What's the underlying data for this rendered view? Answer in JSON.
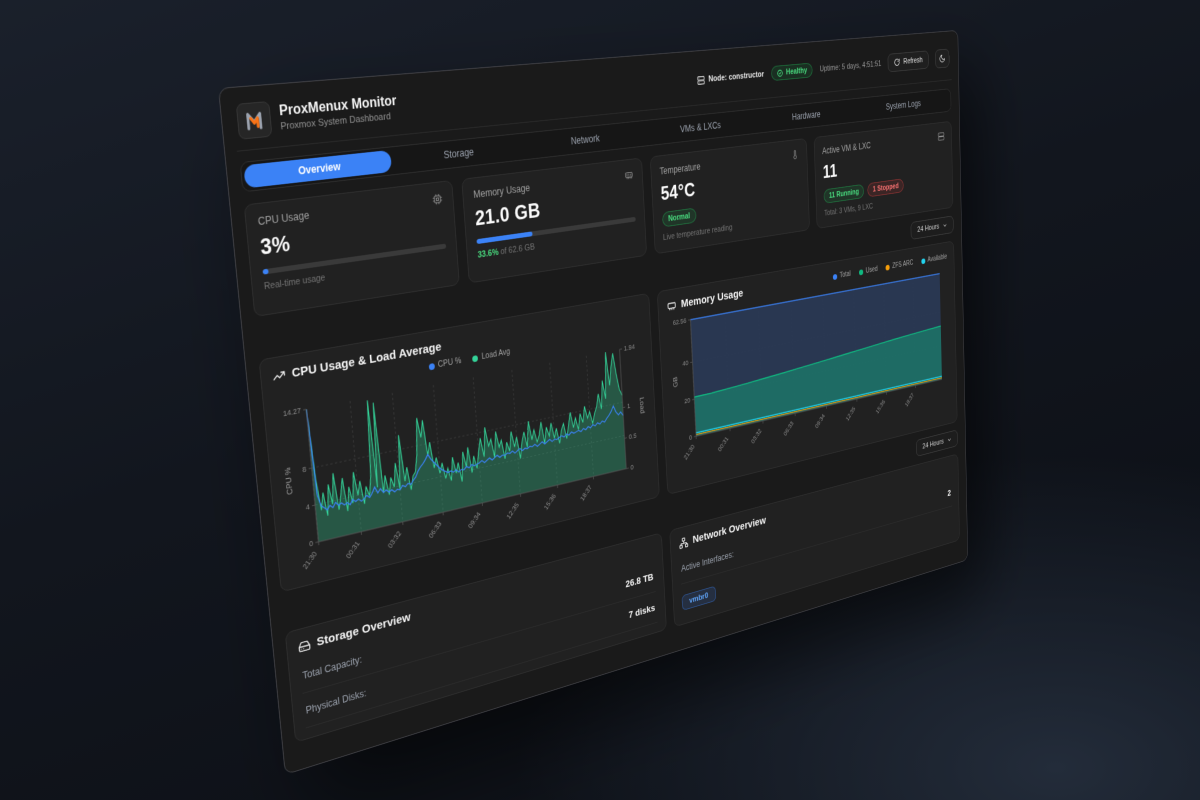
{
  "colors": {
    "accent": "#3b82f6",
    "green": "#4ade80",
    "red": "#f87171"
  },
  "topbar": {
    "node": "Node: constructor",
    "health": "Healthy",
    "uptime": "Uptime: 5 days, 4:51:51",
    "refresh": "Refresh"
  },
  "header": {
    "title": "ProxMenux Monitor",
    "subtitle": "Proxmox System Dashboard"
  },
  "tabs": [
    "Overview",
    "Storage",
    "Network",
    "VMs & LXCs",
    "Hardware",
    "System Logs"
  ],
  "range_selector": {
    "label": "24 Hours"
  },
  "stats": {
    "cpu": {
      "label": "CPU Usage",
      "value": "3%",
      "percent": 3,
      "caption": "Real-time usage"
    },
    "memory": {
      "label": "Memory Usage",
      "value": "21.0 GB",
      "percent": 33.6,
      "caption_highlight": "33.6%",
      "caption_rest": " of 62.6 GB"
    },
    "temperature": {
      "label": "Temperature",
      "value": "54°C",
      "badge": "Normal",
      "caption": "Live temperature reading"
    },
    "vms": {
      "label": "Active VM & LXC",
      "value": "11",
      "running": "11 Running",
      "stopped": "1 Stopped",
      "caption": "Total: 3 VMs, 9 LXC"
    }
  },
  "storage": {
    "title": "Storage Overview",
    "rows": [
      {
        "label": "Total Capacity:",
        "value": "26.8 TB"
      },
      {
        "label": "Physical Disks:",
        "value": "7 disks"
      }
    ]
  },
  "network": {
    "title": "Network Overview",
    "interfaces_label": "Active Interfaces:",
    "interfaces_count": "2",
    "pills": [
      "vmbr0"
    ]
  },
  "chart_data": [
    {
      "type": "line",
      "title": "CPU Usage & Load Average",
      "x_labels": [
        "21:30",
        "00:31",
        "03:32",
        "06:33",
        "09:34",
        "12:35",
        "15:36",
        "18:37"
      ],
      "y_left": {
        "label": "CPU %",
        "ticks": [
          0,
          4,
          8
        ],
        "max": 14.27
      },
      "y_right": {
        "label": "Load",
        "ticks": [
          0,
          0.5,
          1
        ],
        "max": 1.94
      },
      "legend": [
        {
          "name": "CPU %",
          "color": "#3b82f6"
        },
        {
          "name": "Load Avg",
          "color": "#34d399"
        }
      ],
      "series": [
        {
          "name": "Load Avg",
          "axis": "right",
          "color": "#34d399",
          "fill": "rgba(52,211,153,0.30)",
          "width": 1.2,
          "values": [
            1.94,
            0.9,
            0.45,
            0.7,
            0.35,
            0.8,
            0.5,
            0.95,
            0.4,
            0.6,
            0.85,
            0.35,
            0.7,
            0.45,
            0.9,
            0.55,
            0.75,
            0.4,
            0.65,
            0.5,
            0.8,
            1.9,
            0.6,
            1.85,
            0.5,
            0.75,
            0.45,
            0.7,
            0.55,
            0.9,
            0.5,
            1.3,
            0.6,
            0.8,
            0.45,
            0.65,
            0.7,
            0.95,
            1.5,
            1.2,
            1.45,
            0.9,
            1.1,
            0.7,
            0.85,
            0.6,
            0.75,
            0.5,
            0.65,
            0.45,
            0.8,
            0.55,
            0.7,
            0.4,
            0.85,
            0.6,
            0.9,
            0.5,
            0.75,
            0.55,
            0.8,
            1.0,
            0.7,
            1.15,
            0.85,
            0.95,
            0.65,
            1.05,
            0.8,
            0.9,
            0.6,
            0.85,
            0.7,
            1.0,
            0.75,
            0.9,
            0.55,
            0.8,
            0.95,
            0.7,
            1.1,
            0.8,
            0.95,
            0.75,
            0.85,
            1.05,
            0.7,
            0.95,
            0.8,
            1.0,
            0.75,
            0.9,
            0.65,
            0.85,
            0.95,
            0.7,
            0.9,
            1.1,
            0.85,
            1.0,
            0.8,
            1.05,
            0.9,
            1.15,
            0.95,
            1.05,
            0.85,
            1.0,
            1.1,
            1.3,
            1.05,
            1.5,
            1.2,
            1.94,
            1.4,
            1.7,
            1.9,
            1.55,
            1.3,
            1.2
          ]
        },
        {
          "name": "CPU %",
          "axis": "left",
          "color": "#3b82f6",
          "fill": "none",
          "width": 1.4,
          "values": [
            14.27,
            5,
            3.8,
            3.5,
            3.2,
            3.6,
            3.3,
            3.8,
            3.4,
            3.6,
            3.3,
            3.5,
            3.2,
            3.7,
            3.4,
            3.6,
            3.3,
            3.5,
            3.8,
            3.5,
            3.9,
            4.5,
            3.8,
            4.2,
            3.7,
            3.9,
            3.6,
            3.8,
            3.5,
            3.7,
            3.6,
            4.0,
            3.8,
            4.1,
            3.9,
            4.3,
            4.6,
            5.2,
            5.6,
            5.9,
            6.3,
            6.8,
            6.2,
            5.8,
            5.4,
            5.0,
            4.7,
            4.5,
            4.3,
            4.4,
            4.2,
            4.4,
            4.1,
            4.3,
            4.2,
            4.5,
            4.3,
            4.6,
            4.4,
            4.5,
            4.6,
            4.8,
            4.5,
            4.7,
            4.9,
            4.6,
            4.8,
            5.0,
            4.7,
            4.9,
            4.8,
            5.0,
            4.9,
            5.1,
            4.8,
            5.0,
            5.2,
            4.9,
            5.1,
            5.0,
            5.2,
            5.1,
            5.3,
            5.0,
            5.2,
            5.4,
            5.1,
            5.3,
            5.5,
            5.2,
            5.4,
            5.3,
            5.5,
            5.6,
            5.4,
            5.7,
            5.5,
            5.8,
            5.6,
            5.7,
            5.8,
            5.6,
            5.9,
            5.7,
            6.0,
            5.8,
            6.1,
            5.9,
            6.2,
            6.0,
            6.3,
            6.1,
            6.5,
            6.8,
            7.2,
            7.8,
            7.0,
            6.6,
            6.9,
            6.4
          ]
        }
      ]
    },
    {
      "type": "area",
      "title": "Memory Usage",
      "x_labels": [
        "21:30",
        "00:31",
        "03:32",
        "06:33",
        "09:34",
        "12:35",
        "15:36",
        "18:37"
      ],
      "y_left": {
        "label": "GB",
        "ticks": [
          0,
          20,
          40
        ],
        "max": 62.56
      },
      "legend": [
        {
          "name": "Total",
          "color": "#3b82f6"
        },
        {
          "name": "Used",
          "color": "#10b981"
        },
        {
          "name": "ZFS ARC",
          "color": "#f59e0b"
        },
        {
          "name": "Available",
          "color": "#22d3ee"
        }
      ],
      "series": [
        {
          "name": "Total",
          "axis": "left",
          "color": "#3b82f6",
          "fill": "rgba(42,58,86,0.9)",
          "width": 1.6,
          "constant": 62.56
        },
        {
          "name": "Used",
          "axis": "left",
          "color": "#10b981",
          "fill": "rgba(16,185,129,0.40)",
          "width": 1.6,
          "values": [
            21.2,
            21.4,
            21.9,
            22.5,
            23.2,
            23.9,
            24.7,
            25.5,
            26.3,
            27.2,
            28.0,
            28.9,
            29.7,
            30.4,
            31.1,
            31.7
          ]
        },
        {
          "name": "ZFS ARC",
          "axis": "left",
          "color": "#f59e0b",
          "fill": "none",
          "width": 1.2,
          "constant": 0.9
        },
        {
          "name": "Available",
          "axis": "left",
          "color": "#22d3ee",
          "fill": "none",
          "width": 1.4,
          "constant": 1.8
        }
      ]
    }
  ]
}
